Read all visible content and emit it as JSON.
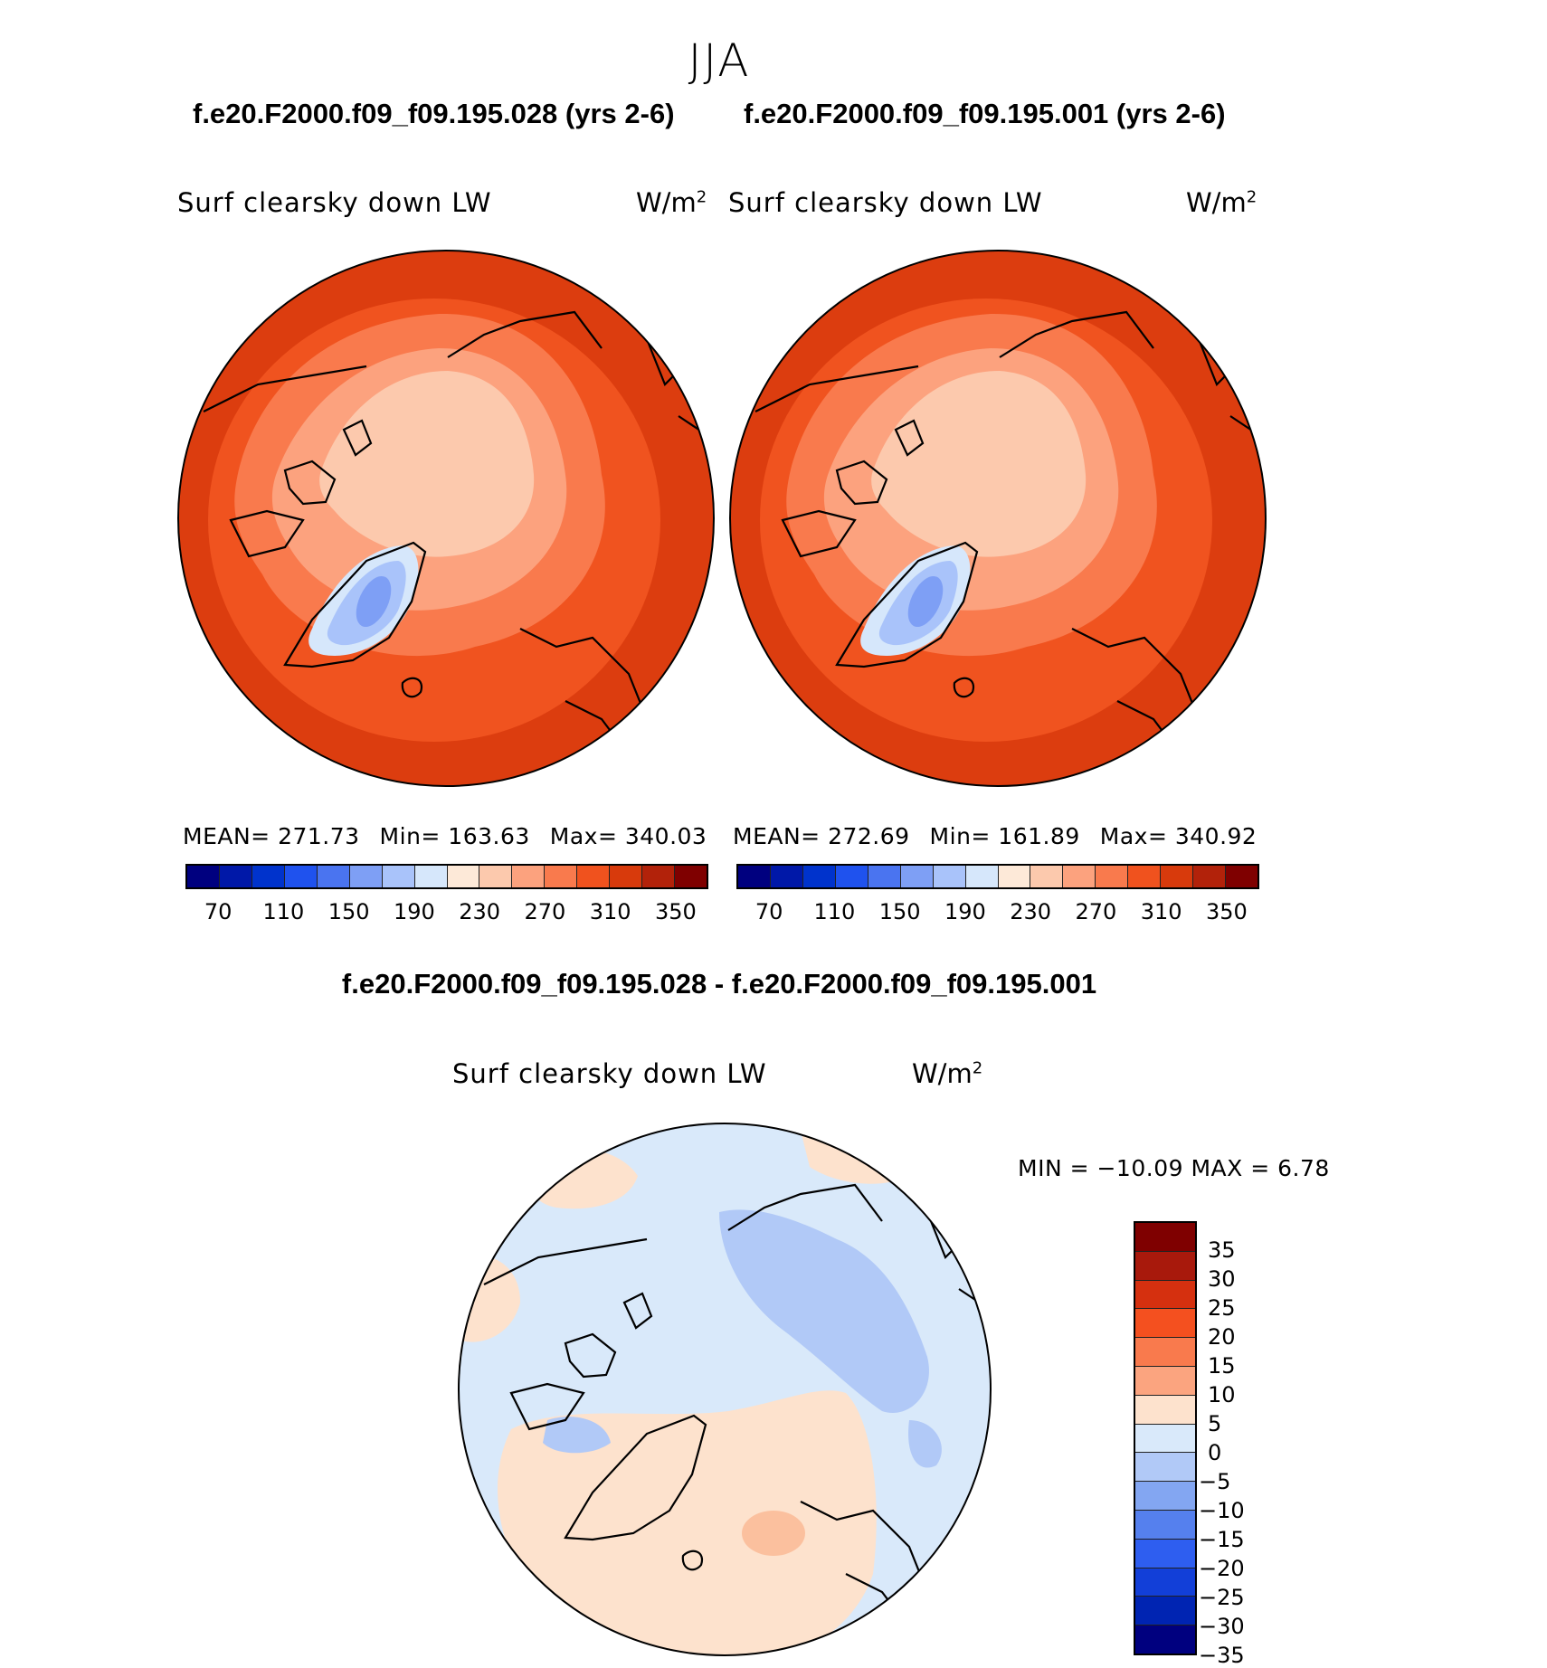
{
  "season": "JJA",
  "panels": [
    {
      "case_title": "f.e20.F2000.f09_f09.195.028 (yrs 2-6)",
      "variable": "Surf clearsky down LW",
      "units_base": "W/m",
      "units_exp": "2",
      "stats": {
        "mean": "MEAN= 271.73",
        "min": "Min= 163.63",
        "max": "Max= 340.03"
      }
    },
    {
      "case_title": "f.e20.F2000.f09_f09.195.001 (yrs 2-6)",
      "variable": "Surf clearsky down LW",
      "units_base": "W/m",
      "units_exp": "2",
      "stats": {
        "mean": "MEAN= 272.69",
        "min": "Min= 161.89",
        "max": "Max= 340.92"
      }
    }
  ],
  "colorbar_top": {
    "colors": [
      "#00007f",
      "#0018a8",
      "#0033cc",
      "#1f52ee",
      "#4a74f0",
      "#7e9ff5",
      "#a9c3fa",
      "#d6e7fb",
      "#fde9d8",
      "#fcc9ad",
      "#fca27e",
      "#f97a4d",
      "#f0521e",
      "#d83a0c",
      "#b2220a",
      "#7f0000"
    ],
    "labels": [
      "70",
      "110",
      "150",
      "190",
      "230",
      "270",
      "310",
      "350"
    ]
  },
  "difference": {
    "title": "f.e20.F2000.f09_f09.195.028 - f.e20.F2000.f09_f09.195.001",
    "variable": "Surf clearsky down LW",
    "units_base": "W/m",
    "units_exp": "2",
    "stats": "MIN = −10.09 MAX =    6.78",
    "colorbar": {
      "colors": [
        "#7f0000",
        "#a8190c",
        "#d5300f",
        "#f4501f",
        "#f97a4d",
        "#fba47f",
        "#fde2cd",
        "#d9e9fa",
        "#b1c9f7",
        "#83a6f2",
        "#5580ee",
        "#2e5ef0",
        "#123fd8",
        "#0024b2",
        "#00007f"
      ],
      "labels": [
        "35",
        "30",
        "25",
        "20",
        "15",
        "10",
        "5",
        "0",
        "−5",
        "−10",
        "−15",
        "−20",
        "−25",
        "−30",
        "−35"
      ]
    }
  },
  "map_colors": {
    "top_outer": "#dc3d0f",
    "top_mid": "#f0531f",
    "top_band": "#f97a4d",
    "top_inner": "#fca27e",
    "top_pole": "#fcc9ad",
    "top_ice": "#d6e7fb",
    "top_ice2": "#a9c3fa",
    "top_ice3": "#7e9ff5",
    "diff_blue": "#d9e9fa",
    "diff_blue2": "#b1c9f7",
    "diff_peach": "#fde2cd",
    "diff_peach2": "#fbc09e"
  }
}
